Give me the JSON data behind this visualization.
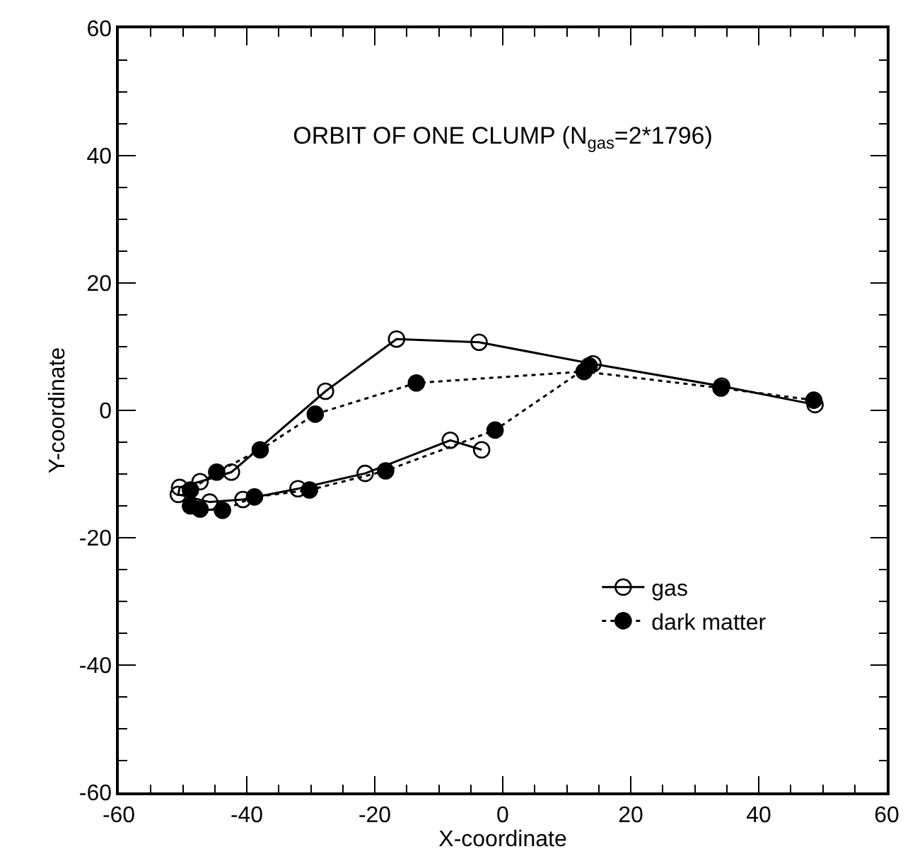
{
  "chart_data": {
    "type": "line",
    "title": "ORBIT OF ONE CLUMP (N$_{gas}$=2*1796)",
    "xlabel": "X-coordinate",
    "ylabel": "Y-coordinate",
    "xlim": [
      -60,
      60
    ],
    "ylim": [
      -60,
      60
    ],
    "xticks": [
      -60,
      {
        "value": -55,
        "label": null
      },
      {
        "value": -50,
        "label": null
      },
      {
        "value": -45,
        "label": null
      },
      -40,
      {
        "value": -35,
        "label": null
      },
      {
        "value": -30,
        "label": null
      },
      {
        "value": -25,
        "label": null
      },
      -20,
      {
        "value": -15,
        "label": null
      },
      {
        "value": -10,
        "label": null
      },
      {
        "value": -5,
        "label": null
      },
      0,
      {
        "value": 5,
        "label": null
      },
      {
        "value": 10,
        "label": null
      },
      {
        "value": 15,
        "label": null
      },
      20,
      {
        "value": 25,
        "label": null
      },
      {
        "value": 30,
        "label": null
      },
      {
        "value": 35,
        "label": null
      },
      40,
      {
        "value": 45,
        "label": null
      },
      {
        "value": 50,
        "label": null
      },
      {
        "value": 55,
        "label": null
      },
      60
    ],
    "yticks": [
      -60,
      {
        "value": -55,
        "label": null
      },
      {
        "value": -50,
        "label": null
      },
      {
        "value": -45,
        "label": null
      },
      -40,
      {
        "value": -35,
        "label": null
      },
      {
        "value": -30,
        "label": null
      },
      {
        "value": -25,
        "label": null
      },
      -20,
      {
        "value": -15,
        "label": null
      },
      {
        "value": -10,
        "label": null
      },
      {
        "value": -5,
        "label": null
      },
      0,
      {
        "value": 5,
        "label": null
      },
      {
        "value": 10,
        "label": null
      },
      {
        "value": 15,
        "label": null
      },
      20,
      {
        "value": 25,
        "label": null
      },
      {
        "value": 30,
        "label": null
      },
      {
        "value": 35,
        "label": null
      },
      40,
      {
        "value": 45,
        "label": null
      },
      {
        "value": 50,
        "label": null
      },
      {
        "value": 55,
        "label": null
      },
      60
    ],
    "legend": "bottom right",
    "series": [
      {
        "name": "gas",
        "color": "#000000",
        "marker": "circle-open",
        "line_style": "solid",
        "x": [
          48.8,
          34.2,
          14.1,
          -3.7,
          -16.6,
          -27.7,
          -42.4,
          -47.3,
          -50.5,
          -50.7,
          -45.8,
          -40.6,
          -32.0,
          -21.5,
          -8.2,
          -3.3
        ],
        "values": [
          0.9,
          3.8,
          7.3,
          10.7,
          11.2,
          3.0,
          -9.7,
          -11.2,
          -12.1,
          -13.2,
          -14.4,
          -14.0,
          -12.3,
          -9.9,
          -4.7,
          -6.2
        ]
      },
      {
        "name": "dark matter",
        "color": "#000000",
        "marker": "circle",
        "line_style": "dotted",
        "x": [
          48.6,
          34.1,
          12.7,
          -13.5,
          -29.3,
          -37.9,
          -44.7,
          -48.8,
          -48.8,
          -47.3,
          -43.8,
          -38.8,
          -30.2,
          -18.3,
          -1.2,
          13.5
        ],
        "values": [
          1.6,
          3.5,
          6.1,
          4.3,
          -0.6,
          -6.2,
          -9.7,
          -12.5,
          -15.0,
          -15.5,
          -15.7,
          -13.6,
          -12.5,
          -9.5,
          -3.1,
          7.0
        ]
      }
    ]
  }
}
